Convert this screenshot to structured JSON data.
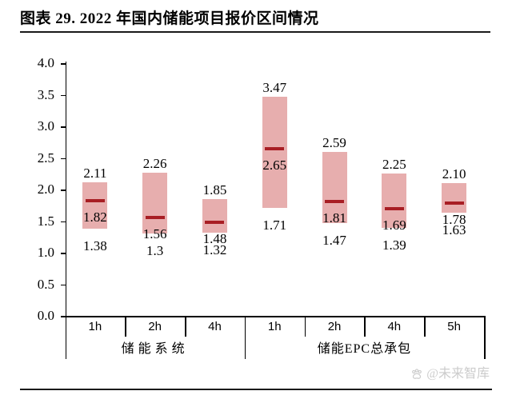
{
  "page": {
    "title": "图表 29. 2022 年国内储能项目报价区间情况",
    "watermark": "@未来智库"
  },
  "chart_data": {
    "type": "bar",
    "subtype": "floating-range-bars-with-median-dash",
    "title": "2022 年国内储能项目报价区间情况",
    "ylim": [
      0.0,
      4.0
    ],
    "ytick_step": 0.5,
    "ytick_labels": [
      "4.0",
      "3.5",
      "3.0",
      "2.5",
      "2.0",
      "1.5",
      "1.0",
      "0.5",
      "0.0"
    ],
    "grid": false,
    "legend": null,
    "groups": [
      {
        "label": "储能系统",
        "categories": [
          "1h",
          "2h",
          "4h"
        ]
      },
      {
        "label": "储能EPC总承包",
        "categories": [
          "1h",
          "2h",
          "4h",
          "5h"
        ]
      }
    ],
    "bars": [
      {
        "group": "储能系统",
        "category": "1h",
        "low": 1.38,
        "median": 1.82,
        "high": 2.11,
        "low_label": "1.38",
        "median_label": "1.82",
        "high_label": "2.11"
      },
      {
        "group": "储能系统",
        "category": "2h",
        "low": 1.3,
        "median": 1.56,
        "high": 2.26,
        "low_label": "1.3",
        "median_label": "1.56",
        "high_label": "2.26"
      },
      {
        "group": "储能系统",
        "category": "4h",
        "low": 1.32,
        "median": 1.48,
        "high": 1.85,
        "low_label": "1.32",
        "median_label": "1.48",
        "high_label": "1.85"
      },
      {
        "group": "储能EPC总承包",
        "category": "1h",
        "low": 1.71,
        "median": 2.65,
        "high": 3.47,
        "low_label": "1.71",
        "median_label": "2.65",
        "high_label": "3.47"
      },
      {
        "group": "储能EPC总承包",
        "category": "2h",
        "low": 1.47,
        "median": 1.81,
        "high": 2.59,
        "low_label": "1.47",
        "median_label": "1.81",
        "high_label": "2.59"
      },
      {
        "group": "储能EPC总承包",
        "category": "4h",
        "low": 1.39,
        "median": 1.69,
        "high": 2.25,
        "low_label": "1.39",
        "median_label": "1.69",
        "high_label": "2.25"
      },
      {
        "group": "储能EPC总承包",
        "category": "5h",
        "low": 1.63,
        "median": 1.78,
        "high": 2.1,
        "low_label": "1.63",
        "median_label": "1.78",
        "high_label": "2.10"
      }
    ],
    "colors": {
      "bar_fill": "#e7aeae",
      "median_dash": "#a81e24",
      "axis": "#000000",
      "text": "#000000",
      "watermark": "#cccccc"
    }
  }
}
